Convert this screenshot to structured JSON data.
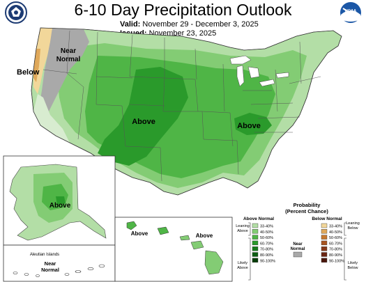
{
  "header": {
    "title": "6-10 Day Precipitation Outlook",
    "valid_label": "Valid:",
    "valid_value": "November 29 - December 3, 2025",
    "issued_label": "Issued:",
    "issued_value": "November 23, 2025"
  },
  "logos": {
    "left": "seal-icon",
    "right": "noaa-logo-icon",
    "noaa_text": "NOAA"
  },
  "map_labels": {
    "below": "Below",
    "near_normal_1": "Near",
    "near_normal_2": "Normal",
    "above_main": "Above",
    "above_east": "Above",
    "above_alaska": "Above",
    "above_hawaii_1": "Above",
    "above_hawaii_2": "Above",
    "aleutian_title": "Aleutian Islands",
    "aleutian_near": "Near",
    "aleutian_normal": "Normal"
  },
  "legend": {
    "title_1": "Probability",
    "title_2": "(Percent Chance)",
    "above_header": "Above Normal",
    "below_header": "Below Normal",
    "near_label_1": "Near",
    "near_label_2": "Normal",
    "leaning_above_1": "Leaning",
    "leaning_above_2": "Above",
    "likely_above_1": "Likely",
    "likely_above_2": "Above",
    "leaning_below_1": "Leaning",
    "leaning_below_2": "Below",
    "likely_below_1": "Likely",
    "likely_below_2": "Below",
    "above_rows": [
      {
        "label": "33-40%",
        "color": "#b3dea6"
      },
      {
        "label": "40-50%",
        "color": "#83cc74"
      },
      {
        "label": "50-60%",
        "color": "#4fb546"
      },
      {
        "label": "60-70%",
        "color": "#2a9a2b"
      },
      {
        "label": "70-80%",
        "color": "#177a1c"
      },
      {
        "label": "80-90%",
        "color": "#0d5c12"
      },
      {
        "label": "90-100%",
        "color": "#063d08"
      }
    ],
    "below_rows": [
      {
        "label": "33-40%",
        "color": "#f2d79a"
      },
      {
        "label": "40-50%",
        "color": "#dfa85a"
      },
      {
        "label": "50-60%",
        "color": "#c7792f"
      },
      {
        "label": "60-70%",
        "color": "#a85420"
      },
      {
        "label": "70-80%",
        "color": "#87391a"
      },
      {
        "label": "80-90%",
        "color": "#6a2512"
      },
      {
        "label": "90-100%",
        "color": "#4a160b"
      }
    ],
    "near_color": "#a9a9a9"
  }
}
